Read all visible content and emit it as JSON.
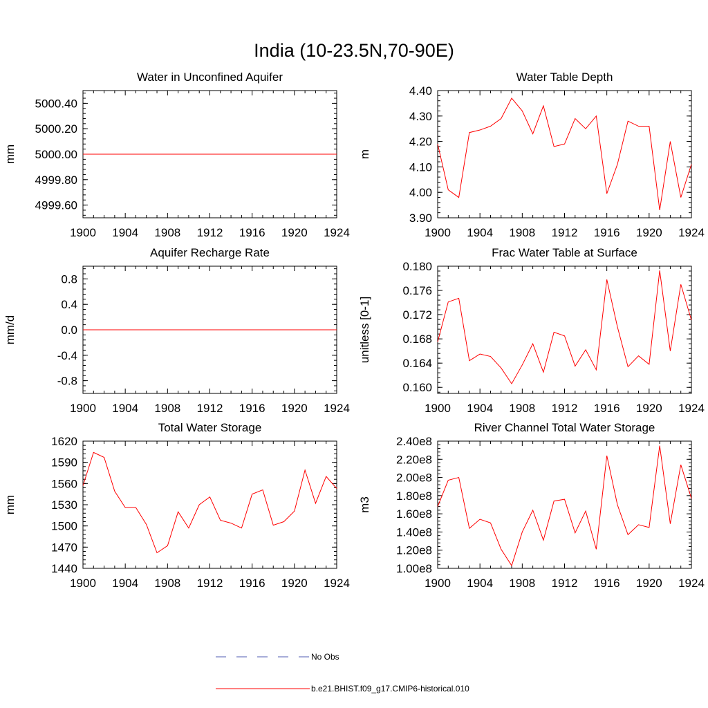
{
  "figure": {
    "title": "India (10-23.5N,70-90E)"
  },
  "legend": {
    "entries": [
      {
        "label": "No Obs",
        "color": "#4f5bb0",
        "dash": true
      },
      {
        "label": "b.e21.BHIST.f09_g17.CMIP6-historical.010",
        "color": "#ff0000",
        "dash": false
      }
    ]
  },
  "chart_data": [
    {
      "type": "line",
      "title": "Water in Unconfined Aquifer",
      "xlabel": "",
      "ylabel": "mm",
      "xlim": [
        1900,
        1924
      ],
      "ylim": [
        4999.5,
        5000.5
      ],
      "xticks": [
        1900,
        1904,
        1908,
        1912,
        1916,
        1920,
        1924
      ],
      "xtick_labels": [
        "1900",
        "1904",
        "1908",
        "1912",
        "1916",
        "1920",
        "1924"
      ],
      "yticks": [
        4999.6,
        4999.8,
        5000.0,
        5000.2,
        5000.4
      ],
      "ytick_labels": [
        "4999.60",
        "4999.80",
        "5000.00",
        "5000.20",
        "5000.40"
      ],
      "x": [
        1900,
        1901,
        1902,
        1903,
        1904,
        1905,
        1906,
        1907,
        1908,
        1909,
        1910,
        1911,
        1912,
        1913,
        1914,
        1915,
        1916,
        1917,
        1918,
        1919,
        1920,
        1921,
        1922,
        1923,
        1924
      ],
      "series": [
        {
          "name": "b.e21.BHIST.f09_g17.CMIP6-historical.010",
          "color": "#ff0000",
          "values": [
            5000,
            5000,
            5000,
            5000,
            5000,
            5000,
            5000,
            5000,
            5000,
            5000,
            5000,
            5000,
            5000,
            5000,
            5000,
            5000,
            5000,
            5000,
            5000,
            5000,
            5000,
            5000,
            5000,
            5000,
            5000
          ]
        }
      ]
    },
    {
      "type": "line",
      "title": "Water Table Depth",
      "xlabel": "",
      "ylabel": "m",
      "xlim": [
        1900,
        1924
      ],
      "ylim": [
        3.9,
        4.4
      ],
      "xticks": [
        1900,
        1904,
        1908,
        1912,
        1916,
        1920,
        1924
      ],
      "xtick_labels": [
        "1900",
        "1904",
        "1908",
        "1912",
        "1916",
        "1920",
        "1924"
      ],
      "yticks": [
        3.9,
        4.0,
        4.1,
        4.2,
        4.3,
        4.4
      ],
      "ytick_labels": [
        "3.90",
        "4.00",
        "4.10",
        "4.20",
        "4.30",
        "4.40"
      ],
      "x": [
        1900,
        1901,
        1902,
        1903,
        1904,
        1905,
        1906,
        1907,
        1908,
        1909,
        1910,
        1911,
        1912,
        1913,
        1914,
        1915,
        1916,
        1917,
        1918,
        1919,
        1920,
        1921,
        1922,
        1923,
        1924
      ],
      "series": [
        {
          "name": "b.e21.BHIST.f09_g17.CMIP6-historical.010",
          "color": "#ff0000",
          "values": [
            4.19,
            4.01,
            3.98,
            4.235,
            4.245,
            4.26,
            4.29,
            4.37,
            4.32,
            4.23,
            4.34,
            4.18,
            4.19,
            4.29,
            4.25,
            4.3,
            3.995,
            4.11,
            4.28,
            4.26,
            4.26,
            3.93,
            4.2,
            3.98,
            4.11
          ]
        }
      ]
    },
    {
      "type": "line",
      "title": "Aquifer Recharge Rate",
      "xlabel": "",
      "ylabel": "mm/d",
      "xlim": [
        1900,
        1924
      ],
      "ylim": [
        -1.0,
        1.0
      ],
      "xticks": [
        1900,
        1904,
        1908,
        1912,
        1916,
        1920,
        1924
      ],
      "xtick_labels": [
        "1900",
        "1904",
        "1908",
        "1912",
        "1916",
        "1920",
        "1924"
      ],
      "yticks": [
        -0.8,
        -0.4,
        0.0,
        0.4,
        0.8
      ],
      "ytick_labels": [
        "-0.8",
        "-0.4",
        "0.0",
        "0.4",
        "0.8"
      ],
      "x": [
        1900,
        1901,
        1902,
        1903,
        1904,
        1905,
        1906,
        1907,
        1908,
        1909,
        1910,
        1911,
        1912,
        1913,
        1914,
        1915,
        1916,
        1917,
        1918,
        1919,
        1920,
        1921,
        1922,
        1923,
        1924
      ],
      "series": [
        {
          "name": "b.e21.BHIST.f09_g17.CMIP6-historical.010",
          "color": "#ff0000",
          "values": [
            0,
            0,
            0,
            0,
            0,
            0,
            0,
            0,
            0,
            0,
            0,
            0,
            0,
            0,
            0,
            0,
            0,
            0,
            0,
            0,
            0,
            0,
            0,
            0,
            0
          ]
        }
      ]
    },
    {
      "type": "line",
      "title": "Frac Water Table at Surface",
      "xlabel": "",
      "ylabel": "unitless [0-1]",
      "xlim": [
        1900,
        1924
      ],
      "ylim": [
        0.159,
        0.18
      ],
      "xticks": [
        1900,
        1904,
        1908,
        1912,
        1916,
        1920,
        1924
      ],
      "xtick_labels": [
        "1900",
        "1904",
        "1908",
        "1912",
        "1916",
        "1920",
        "1924"
      ],
      "yticks": [
        0.16,
        0.164,
        0.168,
        0.172,
        0.176,
        0.18
      ],
      "ytick_labels": [
        "0.160",
        "0.164",
        "0.168",
        "0.172",
        "0.176",
        "0.180"
      ],
      "x": [
        1900,
        1901,
        1902,
        1903,
        1904,
        1905,
        1906,
        1907,
        1908,
        1909,
        1910,
        1911,
        1912,
        1913,
        1914,
        1915,
        1916,
        1917,
        1918,
        1919,
        1920,
        1921,
        1922,
        1923,
        1924
      ],
      "series": [
        {
          "name": "b.e21.BHIST.f09_g17.CMIP6-historical.010",
          "color": "#ff0000",
          "values": [
            0.1675,
            0.1741,
            0.1747,
            0.1644,
            0.1655,
            0.1651,
            0.1632,
            0.1606,
            0.1637,
            0.1672,
            0.1625,
            0.1691,
            0.1685,
            0.1635,
            0.1662,
            0.1629,
            0.1778,
            0.17,
            0.1634,
            0.1652,
            0.1638,
            0.1793,
            0.166,
            0.177,
            0.1711
          ]
        }
      ]
    },
    {
      "type": "line",
      "title": "Total Water Storage",
      "xlabel": "",
      "ylabel": "mm",
      "xlim": [
        1900,
        1924
      ],
      "ylim": [
        1440,
        1620
      ],
      "xticks": [
        1900,
        1904,
        1908,
        1912,
        1916,
        1920,
        1924
      ],
      "xtick_labels": [
        "1900",
        "1904",
        "1908",
        "1912",
        "1916",
        "1920",
        "1924"
      ],
      "yticks": [
        1440,
        1470,
        1500,
        1530,
        1560,
        1590,
        1620
      ],
      "ytick_labels": [
        "1440",
        "1470",
        "1500",
        "1530",
        "1560",
        "1590",
        "1620"
      ],
      "x": [
        1900,
        1901,
        1902,
        1903,
        1904,
        1905,
        1906,
        1907,
        1908,
        1909,
        1910,
        1911,
        1912,
        1913,
        1914,
        1915,
        1916,
        1917,
        1918,
        1919,
        1920,
        1921,
        1922,
        1923,
        1924
      ],
      "series": [
        {
          "name": "b.e21.BHIST.f09_g17.CMIP6-historical.010",
          "color": "#ff0000",
          "values": [
            1557,
            1604,
            1597,
            1549,
            1526,
            1526,
            1502,
            1462,
            1472,
            1520,
            1497,
            1530,
            1541,
            1508,
            1504,
            1497,
            1545,
            1551,
            1501,
            1506,
            1521,
            1579,
            1532,
            1570,
            1553
          ]
        }
      ]
    },
    {
      "type": "line",
      "title": "River Channel Total Water Storage",
      "xlabel": "",
      "ylabel": "m3",
      "xlim": [
        1900,
        1924
      ],
      "ylim": [
        100000000,
        240000000
      ],
      "xticks": [
        1900,
        1904,
        1908,
        1912,
        1916,
        1920,
        1924
      ],
      "xtick_labels": [
        "1900",
        "1904",
        "1908",
        "1912",
        "1916",
        "1920",
        "1924"
      ],
      "yticks": [
        100000000,
        120000000,
        140000000,
        160000000,
        180000000,
        200000000,
        220000000,
        240000000
      ],
      "ytick_labels": [
        "1.00e8",
        "1.20e8",
        "1.40e8",
        "1.60e8",
        "1.80e8",
        "2.00e8",
        "2.20e8",
        "2.40e8"
      ],
      "x": [
        1900,
        1901,
        1902,
        1903,
        1904,
        1905,
        1906,
        1907,
        1908,
        1909,
        1910,
        1911,
        1912,
        1913,
        1914,
        1915,
        1916,
        1917,
        1918,
        1919,
        1920,
        1921,
        1922,
        1923,
        1924
      ],
      "series": [
        {
          "name": "b.e21.BHIST.f09_g17.CMIP6-historical.010",
          "color": "#ff0000",
          "values": [
            168000000,
            197000000,
            200000000,
            144000000,
            154000000,
            150000000,
            121000000,
            103000000,
            140000000,
            164000000,
            131000000,
            174000000,
            176000000,
            139000000,
            163000000,
            121000000,
            224000000,
            170000000,
            137000000,
            148000000,
            145000000,
            235000000,
            149000000,
            214000000,
            177000000
          ]
        }
      ]
    }
  ]
}
